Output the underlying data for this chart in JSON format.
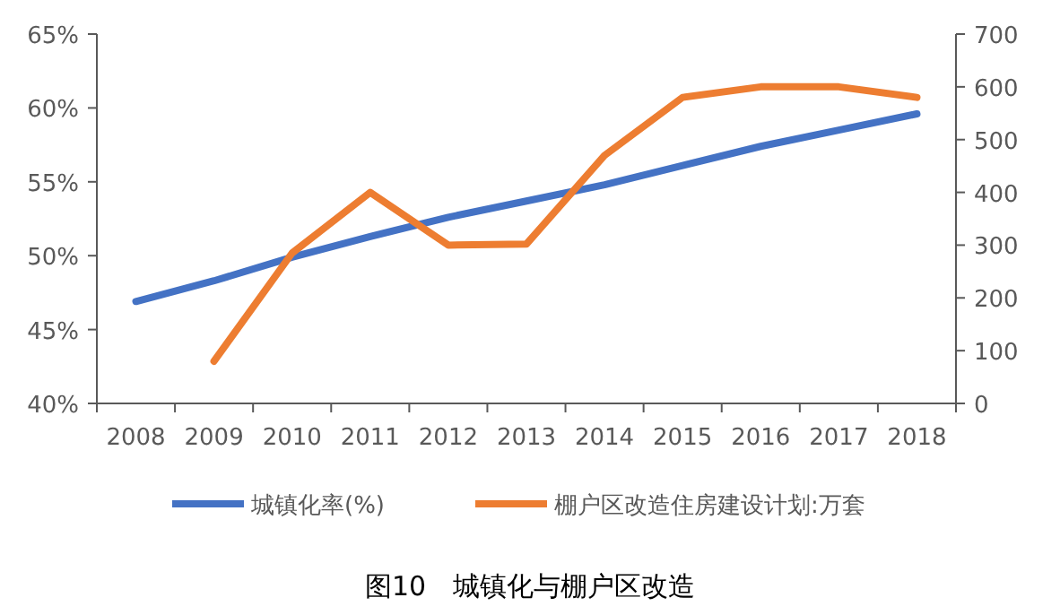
{
  "chart_data": {
    "type": "line",
    "title": "图10　城镇化与棚户区改造",
    "categories": [
      "2008",
      "2009",
      "2010",
      "2011",
      "2012",
      "2013",
      "2014",
      "2015",
      "2016",
      "2017",
      "2018"
    ],
    "series": [
      {
        "name": "城镇化率(%)",
        "color": "#4472c4",
        "values": [
          46.9,
          48.3,
          49.9,
          51.3,
          52.6,
          53.7,
          54.8,
          56.1,
          57.4,
          58.5,
          59.6
        ]
      },
      {
        "name": "棚户区改造住房建设计划:万套",
        "color": "#ed7d31",
        "axis": "y2",
        "values": [
          null,
          80,
          285,
          400,
          300,
          302,
          470,
          580,
          600,
          600,
          580
        ]
      }
    ],
    "ylim": [
      40,
      65
    ],
    "yticks": [
      {
        "value": 40,
        "label": "40%"
      },
      {
        "value": 45,
        "label": "45%"
      },
      {
        "value": 50,
        "label": "50%"
      },
      {
        "value": 55,
        "label": "55%"
      },
      {
        "value": 60,
        "label": "60%"
      },
      {
        "value": 65,
        "label": "65%"
      }
    ],
    "y2lim": [
      0,
      700
    ],
    "y2ticks": [
      0,
      100,
      200,
      300,
      400,
      500,
      600,
      700
    ],
    "grid": false,
    "legend": "bottom",
    "marker": "none",
    "line_style": "solid"
  }
}
